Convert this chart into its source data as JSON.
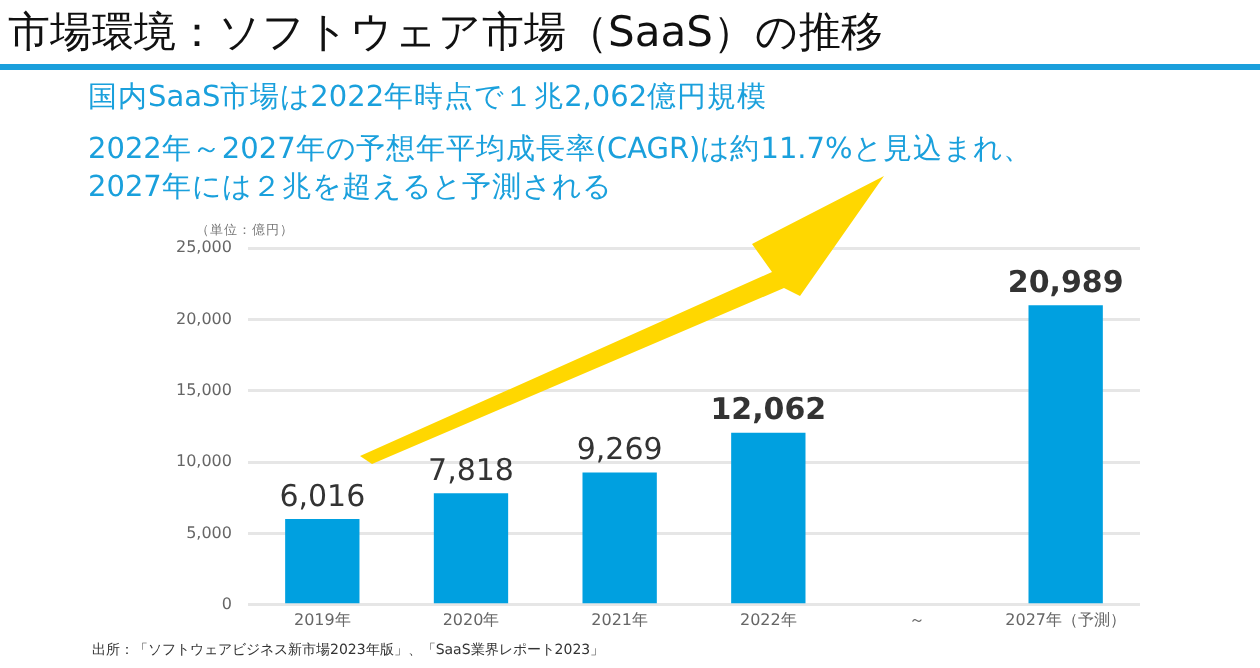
{
  "chart_data": {
    "type": "bar",
    "title": "市場環境：ソフトウェア市場（SaaS）の推移",
    "subtitle": "国内SaaS市場は2022年時点で１兆2,062億円規模\n2022年～2027年の予想年平均成長率(CAGR)は約11.7%と見込まれ、\n2027年には２兆を超えると予測される",
    "ylabel": "（単位：億円）",
    "categories": [
      "2019年",
      "2020年",
      "2021年",
      "2022年",
      "～",
      "2027年（予測）"
    ],
    "values": [
      6016,
      7818,
      9269,
      12062,
      null,
      20989
    ],
    "value_labels": [
      "6,016",
      "7,818",
      "9,269",
      "12,062",
      null,
      "20,989"
    ],
    "color": "#00a0e0",
    "ylim": [
      0,
      25000
    ],
    "yticks": [
      0,
      {
        "value": 5000,
        "label": "5,000"
      },
      {
        "value": 10000,
        "label": "10,000"
      },
      {
        "value": 15000,
        "label": "15,000"
      },
      {
        "value": 20000,
        "label": "20,000"
      },
      {
        "value": 25000,
        "label": "25,000"
      }
    ],
    "grid": "y",
    "legend": false,
    "annotations": [
      "出所：「ソフトウェアビジネス新市場2023年版」、「SaaS業界レポート2023」"
    ]
  }
}
